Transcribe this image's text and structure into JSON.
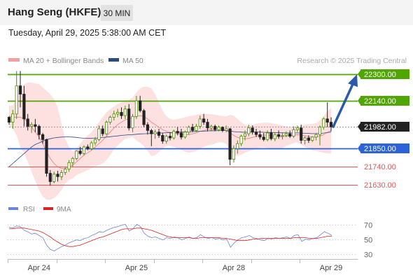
{
  "header": {
    "title": "Hang Seng (HKFE)",
    "timeframe": "30 MIN",
    "datetime": "Tuesday, April 29, 2025 5:38:00 AM CET"
  },
  "legend": {
    "bollinger": "MA 20 + Bollinger Bands",
    "ma50": "MA 50",
    "credit": "Research © 2025 Trading Central",
    "rsi": "RSI",
    "rsi_ma": "9MA"
  },
  "colors": {
    "green": "#4fa600",
    "blue": "#2d62d8",
    "red": "#e05555",
    "band_fill": "#fde0e0",
    "ma20": "#f07a7a",
    "ma50": "#2c4a86",
    "rsi": "#6b85dd",
    "rsi_ma": "#dd2222",
    "current": "#222222"
  },
  "chart_data": [
    {
      "type": "candlestick",
      "title": "Hang Seng (HKFE)",
      "timeframe": "30 MIN",
      "x_labels": [
        "Apr 24",
        "Apr 25",
        "Apr 28",
        "Apr 29"
      ],
      "x_label_index": [
        8,
        34,
        60,
        86
      ],
      "y_range": [
        21550,
        22335
      ],
      "levels": [
        {
          "value": 22300,
          "label": "22300.00",
          "color": "#4fa600",
          "kind": "resistance"
        },
        {
          "value": 22140,
          "label": "22140.00",
          "color": "#4fa600",
          "kind": "resistance"
        },
        {
          "value": 21982,
          "label": "21982.00",
          "color": "#222222",
          "kind": "current"
        },
        {
          "value": 21850,
          "label": "21850.00",
          "color": "#2d62d8",
          "kind": "pivot"
        },
        {
          "value": 21740,
          "label": "21740.00",
          "color": "#e05555",
          "kind": "support"
        },
        {
          "value": 21630,
          "label": "21630.00",
          "color": "#e05555",
          "kind": "support"
        }
      ],
      "projection": {
        "from": 21982,
        "to": 22300
      },
      "candles": [
        [
          22040,
          22045,
          21995,
          22010
        ],
        [
          22010,
          22085,
          21970,
          22060
        ],
        [
          22060,
          22320,
          22030,
          22230
        ],
        [
          22230,
          22320,
          22100,
          22180
        ],
        [
          22180,
          22230,
          21985,
          22030
        ],
        [
          22030,
          22060,
          21960,
          21985
        ],
        [
          21985,
          22010,
          21945,
          21995
        ],
        [
          21995,
          22030,
          21950,
          21985
        ],
        [
          21985,
          21995,
          21905,
          21935
        ],
        [
          21935,
          21945,
          21880,
          21905
        ],
        [
          21905,
          21910,
          21680,
          21700
        ],
        [
          21700,
          21720,
          21625,
          21650
        ],
        [
          21650,
          21710,
          21640,
          21695
        ],
        [
          21695,
          21715,
          21650,
          21680
        ],
        [
          21680,
          21720,
          21660,
          21705
        ],
        [
          21705,
          21740,
          21690,
          21725
        ],
        [
          21725,
          21780,
          21710,
          21765
        ],
        [
          21765,
          21800,
          21740,
          21790
        ],
        [
          21790,
          21840,
          21780,
          21835
        ],
        [
          21835,
          21860,
          21810,
          21820
        ],
        [
          21820,
          21870,
          21810,
          21860
        ],
        [
          21860,
          21875,
          21840,
          21850
        ],
        [
          21850,
          21895,
          21840,
          21885
        ],
        [
          21885,
          21920,
          21870,
          21905
        ],
        [
          21905,
          21990,
          21895,
          21970
        ],
        [
          21970,
          21990,
          21925,
          21940
        ],
        [
          21940,
          22020,
          21930,
          22010
        ],
        [
          22010,
          22050,
          21995,
          22040
        ],
        [
          22040,
          22080,
          22020,
          22060
        ],
        [
          22060,
          22090,
          22040,
          22070
        ],
        [
          22070,
          22100,
          22030,
          22050
        ],
        [
          22050,
          22110,
          22030,
          22090
        ],
        [
          22090,
          22120,
          21960,
          21975
        ],
        [
          21975,
          22060,
          21950,
          22045
        ],
        [
          22045,
          22170,
          22030,
          22140
        ],
        [
          22140,
          22170,
          22070,
          22080
        ],
        [
          22080,
          22090,
          21980,
          21995
        ],
        [
          21995,
          22010,
          21935,
          21960
        ],
        [
          21960,
          21970,
          21865,
          21940
        ],
        [
          21940,
          21965,
          21910,
          21950
        ],
        [
          21950,
          21970,
          21915,
          21930
        ],
        [
          21930,
          21945,
          21880,
          21895
        ],
        [
          21895,
          21935,
          21880,
          21925
        ],
        [
          21925,
          21950,
          21900,
          21915
        ],
        [
          21915,
          21965,
          21905,
          21955
        ],
        [
          21955,
          21980,
          21930,
          21945
        ],
        [
          21945,
          21970,
          21905,
          21920
        ],
        [
          21920,
          21960,
          21910,
          21950
        ],
        [
          21950,
          21990,
          21935,
          21980
        ],
        [
          21980,
          22000,
          21950,
          21960
        ],
        [
          21960,
          22000,
          21950,
          21985
        ],
        [
          21985,
          22050,
          21970,
          22030
        ],
        [
          22030,
          22060,
          21995,
          22010
        ],
        [
          22010,
          22030,
          21955,
          21975
        ],
        [
          21975,
          21995,
          21955,
          21985
        ],
        [
          21985,
          21995,
          21955,
          21965
        ],
        [
          21965,
          21990,
          21955,
          21980
        ],
        [
          21980,
          21985,
          21950,
          21960
        ],
        [
          21960,
          21990,
          21950,
          21970
        ],
        [
          21970,
          21975,
          21750,
          21785
        ],
        [
          21785,
          21870,
          21765,
          21850
        ],
        [
          21850,
          21900,
          21820,
          21880
        ],
        [
          21880,
          21935,
          21865,
          21925
        ],
        [
          21925,
          21960,
          21900,
          21940
        ],
        [
          21940,
          21995,
          21925,
          21975
        ],
        [
          21975,
          21990,
          21935,
          21950
        ],
        [
          21950,
          21970,
          21920,
          21935
        ],
        [
          21935,
          21960,
          21905,
          21920
        ],
        [
          21920,
          21945,
          21895,
          21905
        ],
        [
          21905,
          21960,
          21895,
          21945
        ],
        [
          21945,
          21970,
          21900,
          21910
        ],
        [
          21910,
          21950,
          21895,
          21935
        ],
        [
          21935,
          21960,
          21910,
          21925
        ],
        [
          21925,
          21945,
          21905,
          21930
        ],
        [
          21930,
          21955,
          21920,
          21940
        ],
        [
          21940,
          21960,
          21915,
          21925
        ],
        [
          21925,
          21985,
          21915,
          21965
        ],
        [
          21965,
          21990,
          21950,
          21975
        ],
        [
          21975,
          21995,
          21880,
          21900
        ],
        [
          21900,
          21925,
          21875,
          21915
        ],
        [
          21915,
          21930,
          21885,
          21900
        ],
        [
          21900,
          21925,
          21890,
          21920
        ],
        [
          21920,
          21945,
          21900,
          21935
        ],
        [
          21935,
          21990,
          21870,
          21980
        ],
        [
          21980,
          22040,
          21965,
          22030
        ],
        [
          22030,
          22130,
          21980,
          22010
        ],
        [
          22010,
          22040,
          21955,
          21982
        ]
      ],
      "ma20": [
        22050,
        22040,
        22040,
        22040,
        22030,
        22010,
        21980,
        21950,
        21920,
        21880,
        21830,
        21790,
        21760,
        21740,
        21730,
        21730,
        21740,
        21750,
        21770,
        21790,
        21810,
        21825,
        21840,
        21860,
        21880,
        21900,
        21925,
        21950,
        21975,
        21995,
        22010,
        22025,
        22030,
        22040,
        22045,
        22050,
        22045,
        22030,
        22010,
        21995,
        21980,
        21965,
        21955,
        21948,
        21942,
        21940,
        21938,
        21935,
        21935,
        21940,
        21945,
        21955,
        21960,
        21965,
        21965,
        21968,
        21970,
        21968,
        21962,
        21945,
        21930,
        21918,
        21912,
        21910,
        21912,
        21918,
        21925,
        21930,
        21932,
        21930,
        21928,
        21925,
        21922,
        21922,
        21925,
        21928,
        21932,
        21935,
        21932,
        21928,
        21924,
        21920,
        21920,
        21925,
        21935,
        21948,
        21960
      ],
      "bb_upper": [
        22110,
        22110,
        22150,
        22220,
        22240,
        22250,
        22250,
        22245,
        22240,
        22220,
        22200,
        22180,
        22150,
        22100,
        22000,
        21910,
        21860,
        21830,
        21850,
        21880,
        21910,
        21930,
        21950,
        21980,
        22010,
        22040,
        22070,
        22090,
        22105,
        22120,
        22130,
        22140,
        22145,
        22160,
        22190,
        22215,
        22225,
        22225,
        22215,
        22180,
        22130,
        22080,
        22045,
        22030,
        22025,
        22030,
        22035,
        22040,
        22045,
        22050,
        22055,
        22060,
        22060,
        22060,
        22058,
        22055,
        22052,
        22048,
        22045,
        22055,
        22050,
        22030,
        22010,
        21995,
        21990,
        21995,
        22000,
        22005,
        22007,
        22007,
        22005,
        22000,
        21995,
        21990,
        21985,
        21980,
        21980,
        21982,
        21990,
        21995,
        21998,
        22000,
        22005,
        22020,
        22045,
        22075,
        22100
      ],
      "bb_lower": [
        21990,
        21970,
        21930,
        21860,
        21820,
        21770,
        21710,
        21655,
        21600,
        21560,
        21540,
        21540,
        21550,
        21570,
        21600,
        21640,
        21660,
        21670,
        21690,
        21700,
        21710,
        21720,
        21730,
        21740,
        21750,
        21760,
        21780,
        21810,
        21845,
        21870,
        21890,
        21910,
        21915,
        21920,
        21900,
        21885,
        21865,
        21835,
        21805,
        21810,
        21830,
        21850,
        21865,
        21866,
        21860,
        21850,
        21842,
        21830,
        21825,
        21830,
        21835,
        21850,
        21860,
        21870,
        21872,
        21881,
        21888,
        21888,
        21879,
        21835,
        21810,
        21806,
        21814,
        21825,
        21834,
        21841,
        21850,
        21855,
        21857,
        21853,
        21851,
        21850,
        21849,
        21854,
        21865,
        21876,
        21884,
        21888,
        21874,
        21861,
        21850,
        21840,
        21835,
        21830,
        21825,
        21821,
        21820
      ],
      "ma50": [
        21740,
        21760,
        21780,
        21800,
        21820,
        21840,
        21860,
        21875,
        21885,
        21895,
        21905,
        21910,
        21915,
        21918,
        21920,
        21921,
        21921,
        21920,
        21918,
        21915,
        21913,
        21912,
        21912,
        21913,
        21915,
        21917,
        21920,
        21922,
        21925,
        21927,
        21930,
        21932,
        21934,
        21935,
        21937,
        21939,
        21940,
        21941,
        21942,
        21943,
        21944,
        21945,
        21946,
        21947,
        21948,
        21949,
        21950,
        21951,
        21952,
        21953,
        21954,
        21955,
        21956,
        21957,
        21958,
        21958,
        21959,
        21959,
        21959,
        21956,
        21953,
        21951,
        21950,
        21949,
        21949,
        21950,
        21950,
        21950,
        21949,
        21948,
        21948,
        21947,
        21946,
        21946,
        21945,
        21945,
        21945,
        21945,
        21944,
        21943,
        21942,
        21941,
        21941,
        21942,
        21944,
        21947,
        21950
      ]
    },
    {
      "type": "line",
      "title": "RSI",
      "y_ticks": [
        70,
        50,
        30
      ],
      "y_range": [
        25,
        80
      ],
      "series": [
        {
          "name": "RSI",
          "values": [
            66,
            65,
            68,
            67,
            62,
            60,
            57,
            58,
            55,
            52,
            42,
            36,
            34,
            37,
            40,
            42,
            45,
            47,
            49,
            48,
            51,
            52,
            55,
            57,
            60,
            59,
            62,
            64,
            66,
            67,
            69,
            70,
            61,
            64,
            70,
            67,
            58,
            54,
            52,
            53,
            51,
            49,
            52,
            51,
            53,
            52,
            49,
            51,
            53,
            51,
            52,
            56,
            53,
            51,
            52,
            50,
            51,
            49,
            50,
            39,
            45,
            49,
            52,
            53,
            55,
            52,
            51,
            49,
            48,
            51,
            50,
            52,
            51,
            52,
            53,
            51,
            55,
            56,
            47,
            50,
            49,
            51,
            52,
            56,
            60,
            58,
            55
          ]
        },
        {
          "name": "9MA",
          "values": [
            64,
            64,
            65,
            65,
            65,
            64,
            63,
            62,
            61,
            59,
            56,
            53,
            49,
            46,
            43,
            41,
            40,
            40,
            41,
            42,
            44,
            46,
            48,
            50,
            52,
            53,
            55,
            57,
            59,
            61,
            63,
            64,
            64,
            64,
            65,
            65,
            64,
            63,
            62,
            60,
            58,
            56,
            54,
            53,
            52,
            52,
            52,
            52,
            52,
            51,
            51,
            52,
            52,
            52,
            52,
            52,
            52,
            51,
            51,
            50,
            49,
            48,
            48,
            48,
            49,
            50,
            50,
            51,
            51,
            51,
            51,
            51,
            51,
            51,
            51,
            51,
            52,
            52,
            52,
            52,
            51,
            51,
            51,
            52,
            53,
            54,
            54
          ]
        }
      ]
    }
  ]
}
